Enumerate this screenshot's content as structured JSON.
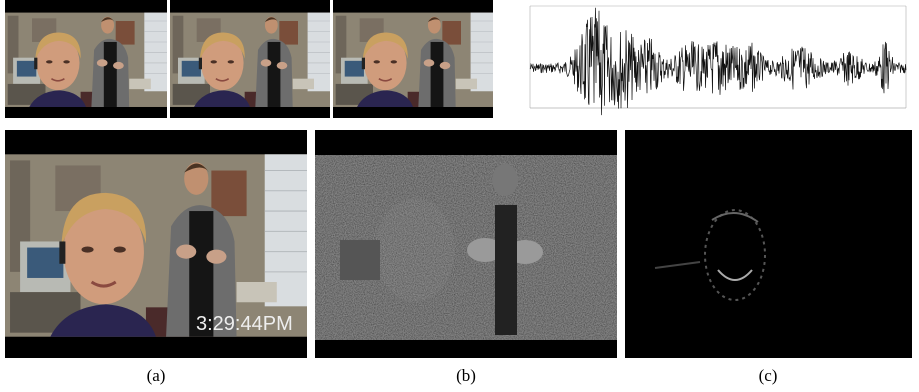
{
  "captions": [
    "(a)",
    "(b)",
    "(c)"
  ],
  "timestamp": "3:29:44PM"
}
